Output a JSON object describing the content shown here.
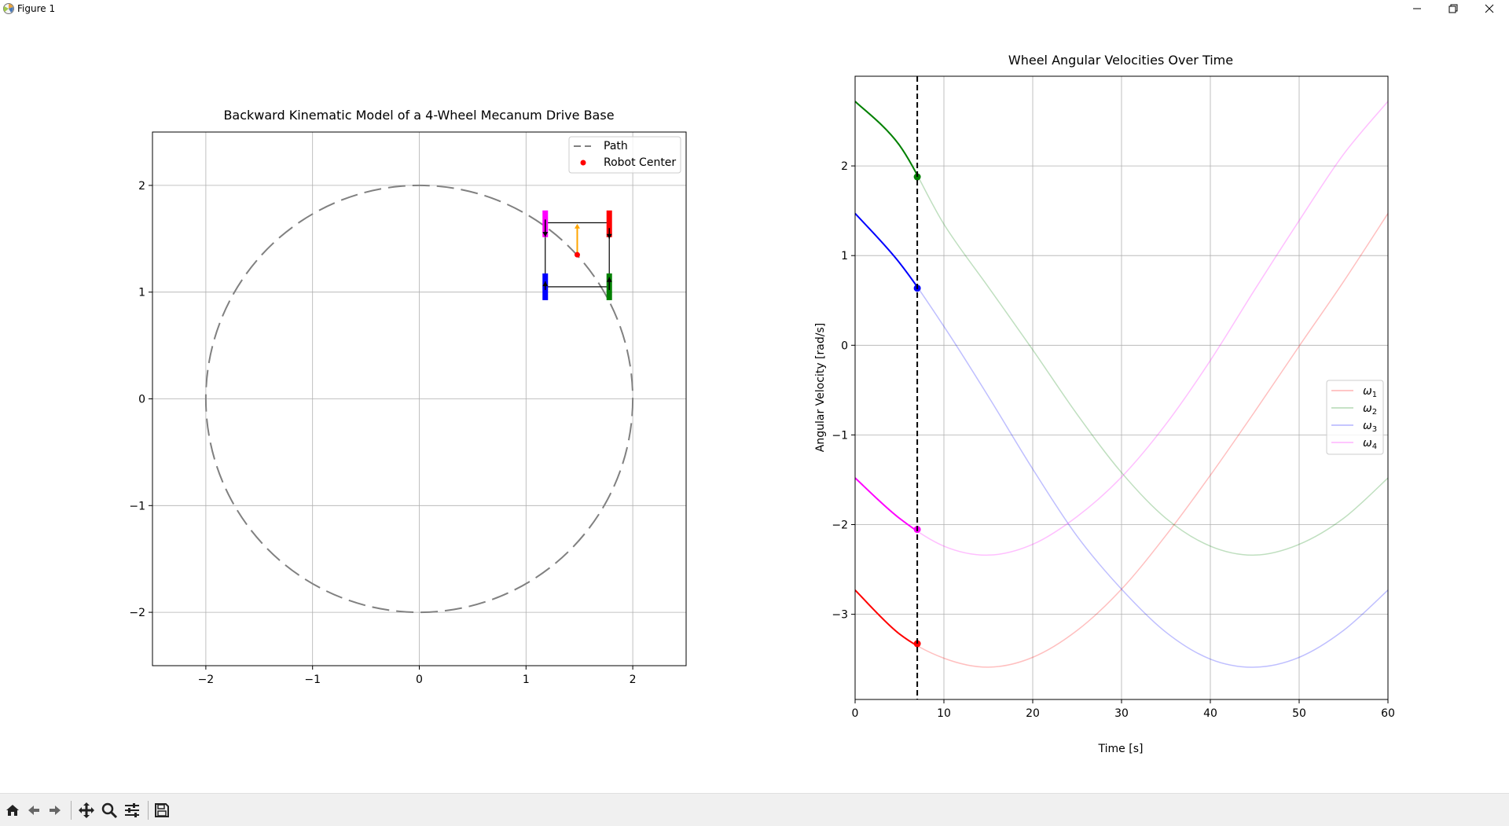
{
  "window": {
    "title": "Figure 1"
  },
  "colors": {
    "path": "#808080",
    "robot_center": "#ff0000",
    "w1": "#ff0000",
    "w2": "#008000",
    "w3": "#0000ff",
    "w4": "#ff00ff",
    "heading": "#ffa500",
    "cursor": "#000000"
  },
  "toolbar": {
    "buttons": [
      "home-icon",
      "back-icon",
      "forward-icon",
      "pan-icon",
      "zoom-icon",
      "configure-subplots-icon",
      "save-icon"
    ]
  },
  "chart_data": [
    {
      "type": "line",
      "title": "Backward Kinematic Model of a 4-Wheel Mecanum Drive Base",
      "xlabel": "",
      "ylabel": "",
      "xlim": [
        -2.5,
        2.5
      ],
      "ylim": [
        -2.5,
        2.5
      ],
      "xticks": [
        "−2",
        "−1",
        "0",
        "1",
        "2"
      ],
      "yticks": [
        "−2",
        "−1",
        "0",
        "1",
        "2"
      ],
      "grid": true,
      "legend_position": "top-right",
      "legend": [
        "Path",
        "Robot Center"
      ],
      "path": {
        "shape": "circle",
        "center": [
          0,
          0
        ],
        "radius": 2,
        "style": "dashed"
      },
      "robot": {
        "center": [
          1.48,
          1.35
        ],
        "half_width": 0.3,
        "half_length": 0.3,
        "heading_tip": [
          1.48,
          1.64
        ],
        "wheels": [
          {
            "name": "front-right",
            "center": [
              1.78,
              1.64
            ],
            "color": "red"
          },
          {
            "name": "rear-right",
            "center": [
              1.78,
              1.05
            ],
            "color": "green"
          },
          {
            "name": "rear-left",
            "center": [
              1.18,
              1.05
            ],
            "color": "blue"
          },
          {
            "name": "front-left",
            "center": [
              1.18,
              1.64
            ],
            "color": "magenta"
          }
        ]
      }
    },
    {
      "type": "line",
      "title": "Wheel Angular Velocities Over Time",
      "xlabel": "Time [s]",
      "ylabel": "Angular Velocity [rad/s]",
      "xlim": [
        0,
        60
      ],
      "ylim": [
        -3.95,
        3.0
      ],
      "xticks": [
        "0",
        "10",
        "20",
        "30",
        "40",
        "50",
        "60"
      ],
      "yticks": [
        "−3",
        "−2",
        "−1",
        "0",
        "1",
        "2"
      ],
      "grid": true,
      "legend_position": "center-right",
      "current_time": 7,
      "series": [
        {
          "name": "ω1",
          "sub": "1",
          "color": "#ff0000",
          "x": [
            0,
            5,
            10,
            15,
            20,
            25,
            30,
            35,
            40,
            45,
            50,
            55,
            60
          ],
          "y": [
            -2.73,
            -3.22,
            -3.49,
            -3.59,
            -3.48,
            -3.18,
            -2.72,
            -2.12,
            -1.45,
            -0.74,
            -0.01,
            0.71,
            1.47
          ]
        },
        {
          "name": "ω2",
          "sub": "2",
          "color": "#008000",
          "x": [
            0,
            5,
            10,
            15,
            20,
            25,
            30,
            35,
            40,
            45,
            50,
            55,
            60
          ],
          "y": [
            2.72,
            2.23,
            1.35,
            0.65,
            -0.05,
            -0.77,
            -1.42,
            -1.93,
            -2.24,
            -2.34,
            -2.22,
            -1.93,
            -1.48
          ]
        },
        {
          "name": "ω3",
          "sub": "3",
          "color": "#0000ff",
          "x": [
            0,
            5,
            10,
            15,
            20,
            25,
            30,
            35,
            40,
            45,
            50,
            55,
            60
          ],
          "y": [
            1.47,
            0.92,
            0.21,
            -0.57,
            -1.38,
            -2.13,
            -2.72,
            -3.2,
            -3.5,
            -3.59,
            -3.48,
            -3.18,
            -2.73
          ]
        },
        {
          "name": "ω4",
          "sub": "4",
          "color": "#ff00ff",
          "x": [
            0,
            5,
            10,
            15,
            20,
            25,
            30,
            35,
            40,
            45,
            50,
            55,
            60
          ],
          "y": [
            -1.48,
            -1.93,
            -2.24,
            -2.34,
            -2.22,
            -1.91,
            -1.47,
            -0.88,
            -0.17,
            0.62,
            1.39,
            2.13,
            2.72
          ]
        }
      ]
    }
  ]
}
